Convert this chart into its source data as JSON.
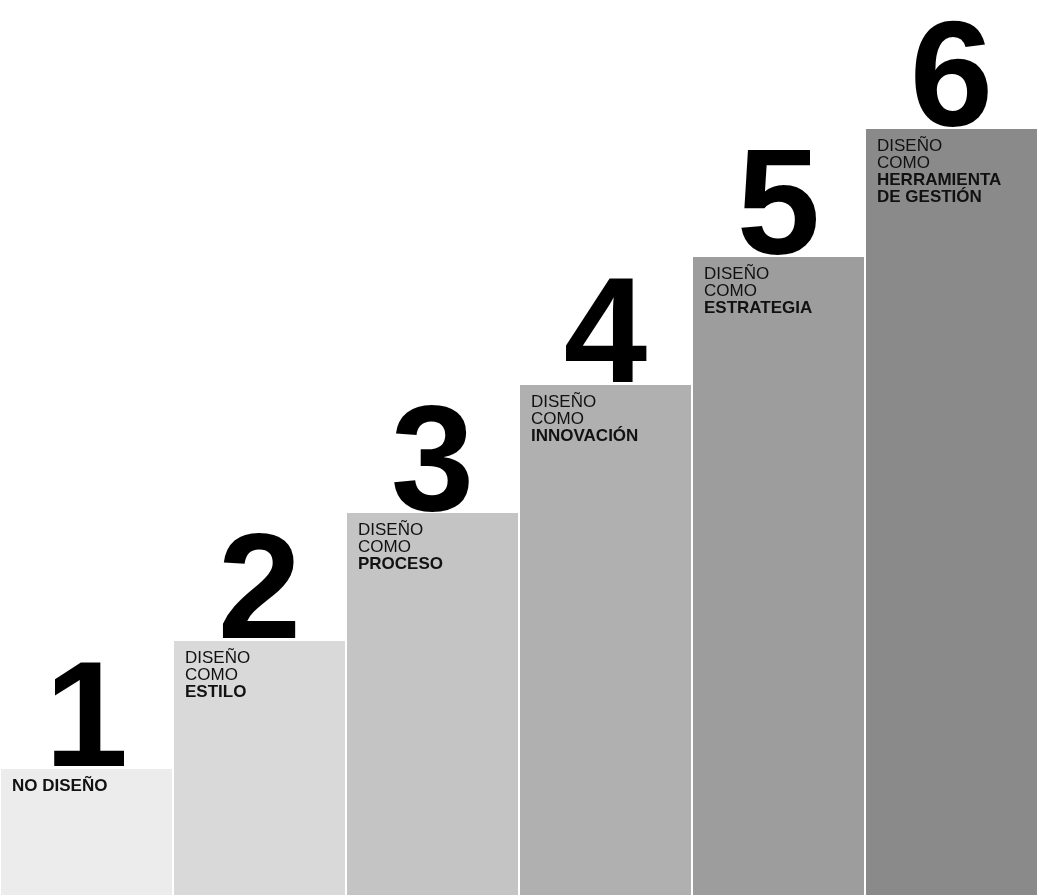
{
  "chart_data": {
    "type": "bar",
    "data_labels": true,
    "categories": [
      "NO DISEÑO",
      "DISEÑO\nCOMO\nESTILO",
      "DISEÑO\nCOMO\nPROCESO",
      "DISEÑO\nCOMO\nINNOVACIÓN",
      "DISEÑO\nCOMO\nESTRATEGIA",
      "DISEÑO\nCOMO\nHERRAMIENTA\nDE GESTIÓN"
    ],
    "values": [
      1,
      2,
      3,
      4,
      5,
      6
    ],
    "colors": [
      "#ececec",
      "#d9d9d9",
      "#c4c4c4",
      "#b0b0b0",
      "#9d9d9d",
      "#8a8a8a"
    ]
  }
}
